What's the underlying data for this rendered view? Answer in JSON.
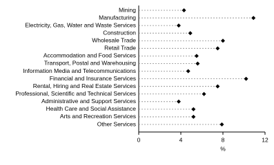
{
  "chart_data": {
    "type": "dot",
    "categories": [
      "Mining",
      "Manufacturing",
      "Electricity, Gas, Water and Waste Services",
      "Construction",
      "Wholesale Trade",
      "Retail Trade",
      "Accommodation and Food Services",
      "Transport, Postal and Warehousing",
      "Information Media and Telecommunications",
      "Financial and Insurance Services",
      "Rental, Hiring and Real Estate Services",
      "Professional, Scientific and Technical Services",
      "Administrative and Support Services",
      "Health Care and Social Assistance",
      "Arts and Recreation Services",
      "Other Services"
    ],
    "values": [
      4.3,
      10.9,
      3.8,
      4.9,
      8.0,
      7.5,
      5.5,
      5.6,
      4.7,
      10.2,
      7.5,
      6.2,
      3.8,
      5.2,
      5.2,
      7.9
    ],
    "color": "#000000",
    "xlim": [
      0,
      12
    ],
    "xticks": [
      0,
      4,
      8,
      12
    ],
    "xlabel": "%"
  }
}
